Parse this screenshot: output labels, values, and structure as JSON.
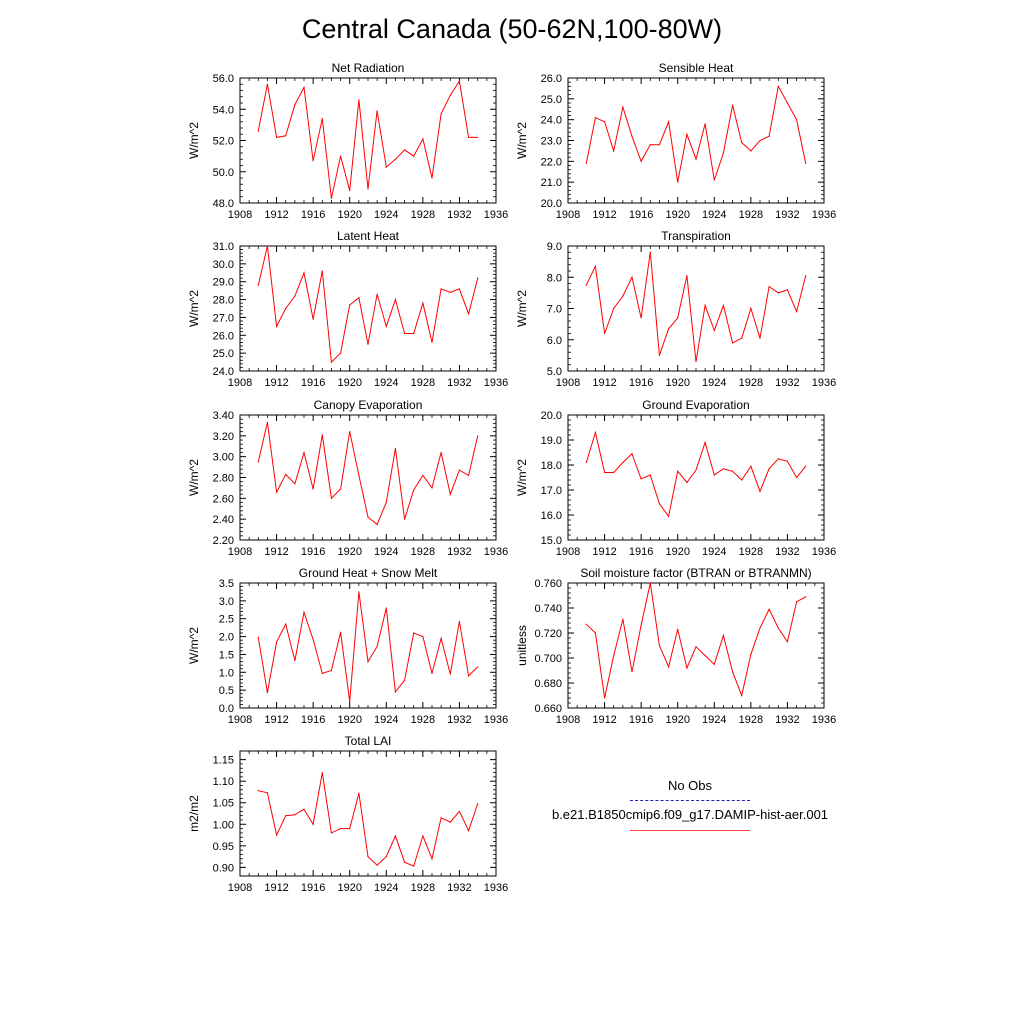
{
  "figure": {
    "title": "Central Canada (50-62N,100-80W)"
  },
  "legend": {
    "entries": [
      {
        "label": "No Obs",
        "color": "#2020c0",
        "style": "dashed"
      },
      {
        "label": "b.e21.B1850cmip6.f09_g17.DAMIP-hist-aer.001",
        "color": "#ff0000",
        "style": "solid"
      }
    ]
  },
  "chart_data": [
    {
      "type": "line",
      "title": "Net Radiation",
      "ylabel": "W/m^2",
      "xlim": [
        1908,
        1936
      ],
      "ylim": [
        48.0,
        56.0
      ],
      "xticks": [
        1908,
        1912,
        1916,
        1920,
        1924,
        1928,
        1932,
        1936
      ],
      "xtick_labels": [
        "1908",
        "1912",
        "1916",
        "1920",
        "1924",
        "1928",
        "1932",
        "1936"
      ],
      "yticks": [
        48.0,
        50.0,
        52.0,
        54.0,
        56.0
      ],
      "ytick_labels": [
        "48.0",
        "50.0",
        "52.0",
        "54.0",
        "56.0"
      ],
      "color": "#ff0000",
      "x": [
        1910,
        1911,
        1912,
        1913,
        1914,
        1915,
        1916,
        1917,
        1918,
        1919,
        1920,
        1921,
        1922,
        1923,
        1924,
        1925,
        1926,
        1927,
        1928,
        1929,
        1930,
        1931,
        1932,
        1933,
        1934
      ],
      "y": [
        52.6,
        55.6,
        52.2,
        52.3,
        54.3,
        55.4,
        50.7,
        53.4,
        48.3,
        51.0,
        48.8,
        54.6,
        48.9,
        53.9,
        50.3,
        50.8,
        51.4,
        51.0,
        52.1,
        49.6,
        53.7,
        54.9,
        55.8,
        52.2,
        52.2
      ]
    },
    {
      "type": "line",
      "title": "Sensible Heat",
      "ylabel": "W/m^2",
      "xlim": [
        1908,
        1936
      ],
      "ylim": [
        20.0,
        26.0
      ],
      "xticks": [
        1908,
        1912,
        1916,
        1920,
        1924,
        1928,
        1932,
        1936
      ],
      "xtick_labels": [
        "1908",
        "1912",
        "1916",
        "1920",
        "1924",
        "1928",
        "1932",
        "1936"
      ],
      "yticks": [
        20.0,
        21.0,
        22.0,
        23.0,
        24.0,
        25.0,
        26.0
      ],
      "ytick_labels": [
        "20.0",
        "21.0",
        "22.0",
        "23.0",
        "24.0",
        "25.0",
        "26.0"
      ],
      "color": "#ff0000",
      "x": [
        1910,
        1911,
        1912,
        1913,
        1914,
        1915,
        1916,
        1917,
        1918,
        1919,
        1920,
        1921,
        1922,
        1923,
        1924,
        1925,
        1926,
        1927,
        1928,
        1929,
        1930,
        1931,
        1932,
        1933,
        1934
      ],
      "y": [
        21.9,
        24.1,
        23.9,
        22.5,
        24.6,
        23.2,
        22.0,
        22.8,
        22.8,
        23.9,
        21.0,
        23.3,
        22.1,
        23.8,
        21.1,
        22.4,
        24.7,
        22.9,
        22.5,
        23.0,
        23.2,
        25.6,
        24.8,
        24.0,
        21.9
      ]
    },
    {
      "type": "line",
      "title": "Latent Heat",
      "ylabel": "W/m^2",
      "xlim": [
        1908,
        1936
      ],
      "ylim": [
        24.0,
        31.0
      ],
      "xticks": [
        1908,
        1912,
        1916,
        1920,
        1924,
        1928,
        1932,
        1936
      ],
      "xtick_labels": [
        "1908",
        "1912",
        "1916",
        "1920",
        "1924",
        "1928",
        "1932",
        "1936"
      ],
      "yticks": [
        24.0,
        25.0,
        26.0,
        27.0,
        28.0,
        29.0,
        30.0,
        31.0
      ],
      "ytick_labels": [
        "24.0",
        "25.0",
        "26.0",
        "27.0",
        "28.0",
        "29.0",
        "30.0",
        "31.0"
      ],
      "color": "#ff0000",
      "x": [
        1910,
        1911,
        1912,
        1913,
        1914,
        1915,
        1916,
        1917,
        1918,
        1919,
        1920,
        1921,
        1922,
        1923,
        1924,
        1925,
        1926,
        1927,
        1928,
        1929,
        1930,
        1931,
        1932,
        1933,
        1934
      ],
      "y": [
        28.8,
        31.0,
        26.5,
        27.5,
        28.2,
        29.5,
        26.9,
        29.6,
        24.5,
        25.0,
        27.7,
        28.1,
        25.5,
        28.3,
        26.5,
        28.0,
        26.1,
        26.1,
        27.8,
        25.6,
        28.6,
        28.4,
        28.6,
        27.2,
        29.2
      ]
    },
    {
      "type": "line",
      "title": "Transpiration",
      "ylabel": "W/m^2",
      "xlim": [
        1908,
        1936
      ],
      "ylim": [
        5.0,
        9.0
      ],
      "xticks": [
        1908,
        1912,
        1916,
        1920,
        1924,
        1928,
        1932,
        1936
      ],
      "xtick_labels": [
        "1908",
        "1912",
        "1916",
        "1920",
        "1924",
        "1928",
        "1932",
        "1936"
      ],
      "yticks": [
        5.0,
        6.0,
        7.0,
        8.0,
        9.0
      ],
      "ytick_labels": [
        "5.0",
        "6.0",
        "7.0",
        "8.0",
        "9.0"
      ],
      "color": "#ff0000",
      "x": [
        1910,
        1911,
        1912,
        1913,
        1914,
        1915,
        1916,
        1917,
        1918,
        1919,
        1920,
        1921,
        1922,
        1923,
        1924,
        1925,
        1926,
        1927,
        1928,
        1929,
        1930,
        1931,
        1932,
        1933,
        1934
      ],
      "y": [
        7.75,
        8.35,
        6.2,
        7.0,
        7.4,
        8.0,
        6.7,
        8.8,
        5.5,
        6.35,
        6.7,
        8.05,
        5.3,
        7.1,
        6.3,
        7.1,
        5.9,
        6.05,
        7.0,
        6.05,
        7.7,
        7.5,
        7.6,
        6.9,
        8.05
      ]
    },
    {
      "type": "line",
      "title": "Canopy Evaporation",
      "ylabel": "W/m^2",
      "xlim": [
        1908,
        1936
      ],
      "ylim": [
        2.2,
        3.4
      ],
      "xticks": [
        1908,
        1912,
        1916,
        1920,
        1924,
        1928,
        1932,
        1936
      ],
      "xtick_labels": [
        "1908",
        "1912",
        "1916",
        "1920",
        "1924",
        "1928",
        "1932",
        "1936"
      ],
      "yticks": [
        2.2,
        2.4,
        2.6,
        2.8,
        3.0,
        3.2,
        3.4
      ],
      "ytick_labels": [
        "2.20",
        "2.40",
        "2.60",
        "2.80",
        "3.00",
        "3.20",
        "3.40"
      ],
      "color": "#ff0000",
      "x": [
        1910,
        1911,
        1912,
        1913,
        1914,
        1915,
        1916,
        1917,
        1918,
        1919,
        1920,
        1921,
        1922,
        1923,
        1924,
        1925,
        1926,
        1927,
        1928,
        1929,
        1930,
        1931,
        1932,
        1933,
        1934
      ],
      "y": [
        2.95,
        3.33,
        2.66,
        2.83,
        2.74,
        3.04,
        2.69,
        3.21,
        2.6,
        2.69,
        3.24,
        2.82,
        2.42,
        2.35,
        2.56,
        3.08,
        2.4,
        2.68,
        2.82,
        2.7,
        3.04,
        2.64,
        2.87,
        2.82,
        3.2
      ]
    },
    {
      "type": "line",
      "title": "Ground Evaporation",
      "ylabel": "W/m^2",
      "xlim": [
        1908,
        1936
      ],
      "ylim": [
        15.0,
        20.0
      ],
      "xticks": [
        1908,
        1912,
        1916,
        1920,
        1924,
        1928,
        1932,
        1936
      ],
      "xtick_labels": [
        "1908",
        "1912",
        "1916",
        "1920",
        "1924",
        "1928",
        "1932",
        "1936"
      ],
      "yticks": [
        15.0,
        16.0,
        17.0,
        18.0,
        19.0,
        20.0
      ],
      "ytick_labels": [
        "15.0",
        "16.0",
        "17.0",
        "18.0",
        "19.0",
        "20.0"
      ],
      "color": "#ff0000",
      "x": [
        1910,
        1911,
        1912,
        1913,
        1914,
        1915,
        1916,
        1917,
        1918,
        1919,
        1920,
        1921,
        1922,
        1923,
        1924,
        1925,
        1926,
        1927,
        1928,
        1929,
        1930,
        1931,
        1932,
        1933,
        1934
      ],
      "y": [
        18.1,
        19.3,
        17.7,
        17.7,
        18.1,
        18.45,
        17.45,
        17.6,
        16.45,
        15.95,
        17.75,
        17.3,
        17.8,
        18.9,
        17.6,
        17.85,
        17.75,
        17.4,
        17.95,
        16.95,
        17.85,
        18.25,
        18.15,
        17.5,
        17.95
      ]
    },
    {
      "type": "line",
      "title": "Ground Heat + Snow Melt",
      "ylabel": "W/m^2",
      "xlim": [
        1908,
        1936
      ],
      "ylim": [
        0.0,
        3.5
      ],
      "xticks": [
        1908,
        1912,
        1916,
        1920,
        1924,
        1928,
        1932,
        1936
      ],
      "xtick_labels": [
        "1908",
        "1912",
        "1916",
        "1920",
        "1924",
        "1928",
        "1932",
        "1936"
      ],
      "yticks": [
        0.0,
        0.5,
        1.0,
        1.5,
        2.0,
        2.5,
        3.0,
        3.5
      ],
      "ytick_labels": [
        "0.0",
        "0.5",
        "1.0",
        "1.5",
        "2.0",
        "2.5",
        "3.0",
        "3.5"
      ],
      "color": "#ff0000",
      "x": [
        1910,
        1911,
        1912,
        1913,
        1914,
        1915,
        1916,
        1917,
        1918,
        1919,
        1920,
        1921,
        1922,
        1923,
        1924,
        1925,
        1926,
        1927,
        1928,
        1929,
        1930,
        1931,
        1932,
        1933,
        1934
      ],
      "y": [
        1.98,
        0.43,
        1.85,
        2.35,
        1.33,
        2.68,
        1.92,
        0.97,
        1.05,
        2.12,
        0.18,
        3.25,
        1.3,
        1.72,
        2.8,
        0.45,
        0.78,
        2.1,
        2.0,
        0.97,
        1.95,
        0.95,
        2.42,
        0.9,
        1.15
      ]
    },
    {
      "type": "line",
      "title": "Soil moisture factor (BTRAN or BTRANMN)",
      "ylabel": "unitless",
      "xlim": [
        1908,
        1936
      ],
      "ylim": [
        0.66,
        0.76
      ],
      "xticks": [
        1908,
        1912,
        1916,
        1920,
        1924,
        1928,
        1932,
        1936
      ],
      "xtick_labels": [
        "1908",
        "1912",
        "1916",
        "1920",
        "1924",
        "1928",
        "1932",
        "1936"
      ],
      "yticks": [
        0.66,
        0.68,
        0.7,
        0.72,
        0.74,
        0.76
      ],
      "ytick_labels": [
        "0.660",
        "0.680",
        "0.700",
        "0.720",
        "0.740",
        "0.760"
      ],
      "color": "#ff0000",
      "x": [
        1910,
        1911,
        1912,
        1913,
        1914,
        1915,
        1916,
        1917,
        1918,
        1919,
        1920,
        1921,
        1922,
        1923,
        1924,
        1925,
        1926,
        1927,
        1928,
        1929,
        1930,
        1931,
        1932,
        1933,
        1934
      ],
      "y": [
        0.727,
        0.72,
        0.668,
        0.702,
        0.731,
        0.689,
        0.726,
        0.76,
        0.71,
        0.693,
        0.723,
        0.692,
        0.709,
        0.702,
        0.695,
        0.718,
        0.689,
        0.67,
        0.703,
        0.724,
        0.739,
        0.724,
        0.713,
        0.745,
        0.749
      ]
    },
    {
      "type": "line",
      "title": "Total LAI",
      "ylabel": "m2/m2",
      "xlim": [
        1908,
        1936
      ],
      "ylim": [
        0.88,
        1.17
      ],
      "xticks": [
        1908,
        1912,
        1916,
        1920,
        1924,
        1928,
        1932,
        1936
      ],
      "xtick_labels": [
        "1908",
        "1912",
        "1916",
        "1920",
        "1924",
        "1928",
        "1932",
        "1936"
      ],
      "yticks": [
        0.9,
        0.95,
        1.0,
        1.05,
        1.1,
        1.15
      ],
      "ytick_labels": [
        "0.90",
        "0.95",
        "1.00",
        "1.05",
        "1.10",
        "1.15"
      ],
      "color": "#ff0000",
      "x": [
        1910,
        1911,
        1912,
        1913,
        1914,
        1915,
        1916,
        1917,
        1918,
        1919,
        1920,
        1921,
        1922,
        1923,
        1924,
        1925,
        1926,
        1927,
        1928,
        1929,
        1930,
        1931,
        1932,
        1933,
        1934
      ],
      "y": [
        1.078,
        1.073,
        0.975,
        1.02,
        1.022,
        1.035,
        1.0,
        1.12,
        0.98,
        0.99,
        0.99,
        1.072,
        0.925,
        0.905,
        0.925,
        0.973,
        0.912,
        0.903,
        0.973,
        0.92,
        1.015,
        1.005,
        1.03,
        0.985,
        1.048
      ]
    }
  ]
}
